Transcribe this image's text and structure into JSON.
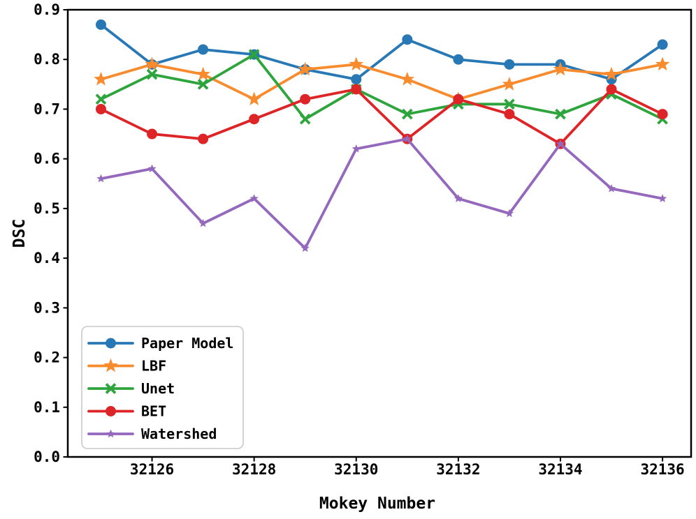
{
  "figure": {
    "background": "#ffffff",
    "spine_color": "#000000",
    "legend_border_color": "#c9c9c9"
  },
  "chart_data": {
    "type": "line",
    "title": "",
    "xlabel": "Mokey Number",
    "ylabel": "DSC",
    "grid": false,
    "xlim": [
      32124.35,
      32136.56
    ],
    "ylim": [
      0.0,
      0.9
    ],
    "xtick_values": [
      32126,
      32128,
      32130,
      32132,
      32134,
      32136
    ],
    "xtick_labels": [
      "32126",
      "32128",
      "32130",
      "32132",
      "32134",
      "32136"
    ],
    "ytick_values": [
      0.0,
      0.1,
      0.2,
      0.3,
      0.4,
      0.5,
      0.6,
      0.7,
      0.8,
      0.9
    ],
    "ytick_labels": [
      "0.0",
      "0.1",
      "0.2",
      "0.3",
      "0.4",
      "0.5",
      "0.6",
      "0.7",
      "0.8",
      "0.9"
    ],
    "x": [
      32125,
      32126,
      32127,
      32128,
      32129,
      32130,
      32131,
      32132,
      32133,
      32134,
      32135,
      32136
    ],
    "series": [
      {
        "name": "Paper Model",
        "color": "#2778b5",
        "marker": "circle",
        "values": [
          0.87,
          0.79,
          0.82,
          0.81,
          0.78,
          0.76,
          0.84,
          0.8,
          0.79,
          0.79,
          0.76,
          0.83
        ]
      },
      {
        "name": "LBF",
        "color": "#f78b2d",
        "marker": "star",
        "values": [
          0.76,
          0.79,
          0.77,
          0.72,
          0.78,
          0.79,
          0.76,
          0.72,
          0.75,
          0.78,
          0.77,
          0.79
        ]
      },
      {
        "name": "Unet",
        "color": "#2ea43c",
        "marker": "x",
        "values": [
          0.72,
          0.77,
          0.75,
          0.81,
          0.68,
          0.74,
          0.69,
          0.71,
          0.71,
          0.69,
          0.73,
          0.68
        ]
      },
      {
        "name": "BET",
        "color": "#dd2527",
        "marker": "circle",
        "values": [
          0.7,
          0.65,
          0.64,
          0.68,
          0.72,
          0.74,
          0.64,
          0.72,
          0.69,
          0.63,
          0.74,
          0.69
        ]
      },
      {
        "name": "Watershed",
        "color": "#9468bd",
        "marker": "star-small",
        "values": [
          0.56,
          0.58,
          0.47,
          0.52,
          0.42,
          0.62,
          0.64,
          0.52,
          0.49,
          0.63,
          0.54,
          0.52
        ]
      }
    ],
    "legend": {
      "position": "lower left",
      "entries": [
        "Paper Model",
        "LBF",
        "Unet",
        "BET",
        "Watershed"
      ]
    }
  }
}
